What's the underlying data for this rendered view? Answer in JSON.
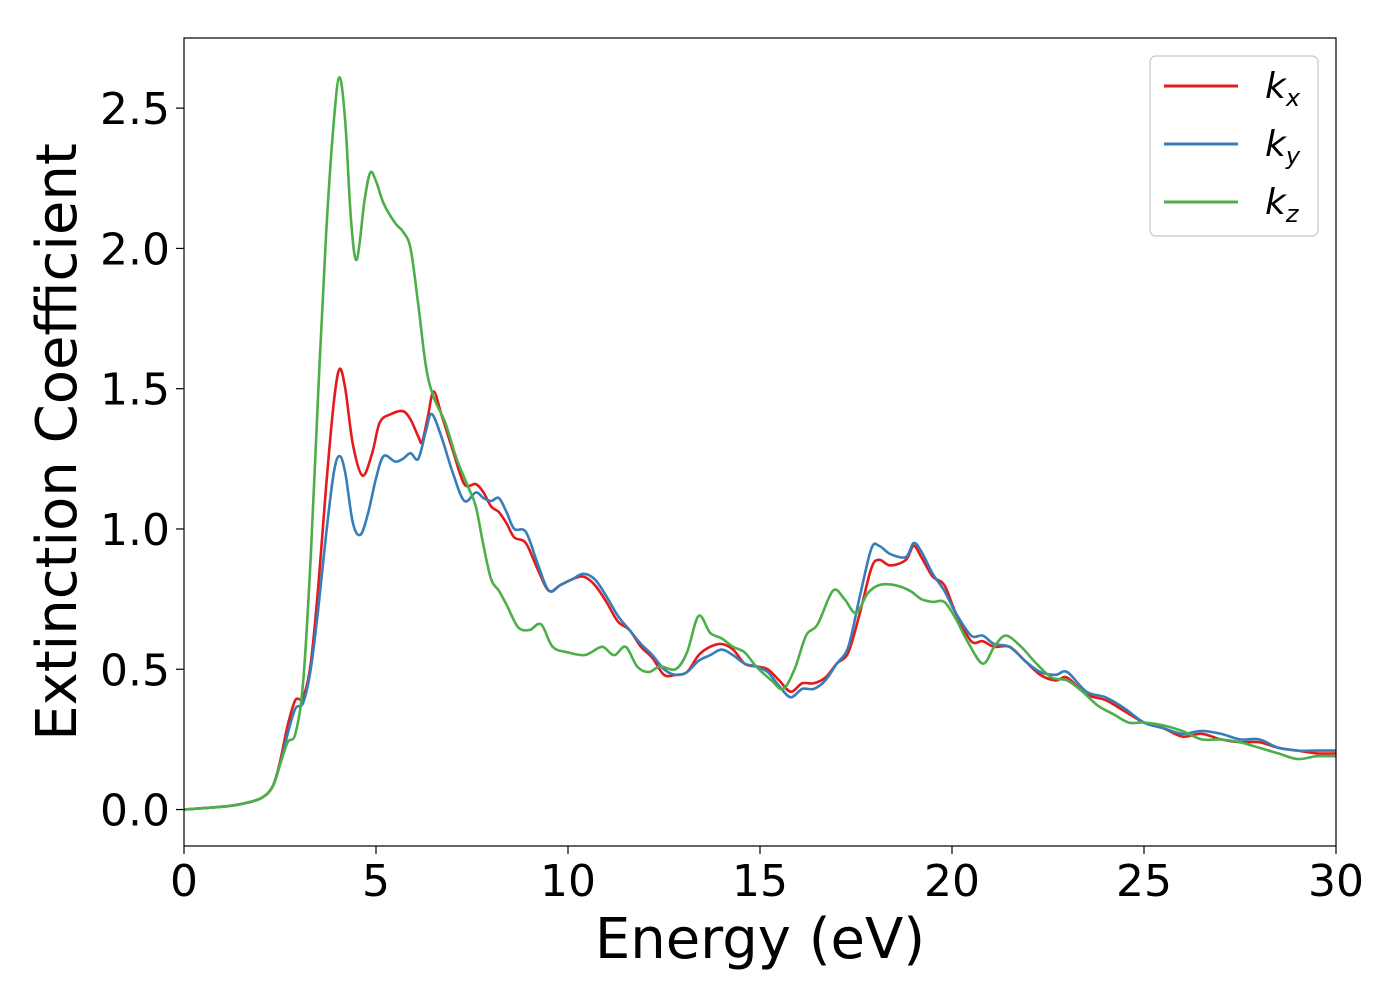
{
  "chart_data": {
    "type": "line",
    "xlabel": "Energy (eV)",
    "ylabel": "Extinction Coefficient",
    "xlim": [
      0,
      30
    ],
    "ylim": [
      -0.13,
      2.75
    ],
    "xticks": [
      0,
      5,
      10,
      15,
      20,
      25,
      30
    ],
    "xtick_labels": [
      "0",
      "5",
      "10",
      "15",
      "20",
      "25",
      "30"
    ],
    "yticks": [
      0.0,
      0.5,
      1.0,
      1.5,
      2.0,
      2.5
    ],
    "ytick_labels": [
      "0.0",
      "0.5",
      "1.0",
      "1.5",
      "2.0",
      "2.5"
    ],
    "grid": false,
    "legend_position": "top-right",
    "series": [
      {
        "name": "k",
        "sub": "x",
        "color": "#e41a1c",
        "points": [
          [
            0,
            0
          ],
          [
            1,
            0.01
          ],
          [
            1.5,
            0.02
          ],
          [
            2,
            0.04
          ],
          [
            2.3,
            0.08
          ],
          [
            2.5,
            0.17
          ],
          [
            2.7,
            0.3
          ],
          [
            2.9,
            0.39
          ],
          [
            3.1,
            0.4
          ],
          [
            3.3,
            0.52
          ],
          [
            3.5,
            0.8
          ],
          [
            3.7,
            1.15
          ],
          [
            3.9,
            1.45
          ],
          [
            4.05,
            1.57
          ],
          [
            4.2,
            1.5
          ],
          [
            4.4,
            1.3
          ],
          [
            4.65,
            1.19
          ],
          [
            4.9,
            1.27
          ],
          [
            5.1,
            1.38
          ],
          [
            5.4,
            1.41
          ],
          [
            5.7,
            1.42
          ],
          [
            5.9,
            1.39
          ],
          [
            6.1,
            1.33
          ],
          [
            6.2,
            1.31
          ],
          [
            6.35,
            1.4
          ],
          [
            6.5,
            1.49
          ],
          [
            6.7,
            1.41
          ],
          [
            7.0,
            1.28
          ],
          [
            7.3,
            1.16
          ],
          [
            7.6,
            1.16
          ],
          [
            7.8,
            1.13
          ],
          [
            8.0,
            1.08
          ],
          [
            8.2,
            1.06
          ],
          [
            8.4,
            1.02
          ],
          [
            8.6,
            0.97
          ],
          [
            8.9,
            0.95
          ],
          [
            9.2,
            0.86
          ],
          [
            9.5,
            0.78
          ],
          [
            9.8,
            0.8
          ],
          [
            10.1,
            0.82
          ],
          [
            10.4,
            0.83
          ],
          [
            10.7,
            0.8
          ],
          [
            11.0,
            0.74
          ],
          [
            11.3,
            0.67
          ],
          [
            11.6,
            0.64
          ],
          [
            11.9,
            0.58
          ],
          [
            12.2,
            0.54
          ],
          [
            12.5,
            0.48
          ],
          [
            12.8,
            0.48
          ],
          [
            13.1,
            0.49
          ],
          [
            13.4,
            0.55
          ],
          [
            13.7,
            0.58
          ],
          [
            14.0,
            0.59
          ],
          [
            14.3,
            0.57
          ],
          [
            14.6,
            0.52
          ],
          [
            14.9,
            0.51
          ],
          [
            15.2,
            0.5
          ],
          [
            15.5,
            0.46
          ],
          [
            15.8,
            0.42
          ],
          [
            16.1,
            0.45
          ],
          [
            16.4,
            0.45
          ],
          [
            16.7,
            0.47
          ],
          [
            17.0,
            0.52
          ],
          [
            17.3,
            0.56
          ],
          [
            17.6,
            0.7
          ],
          [
            17.9,
            0.86
          ],
          [
            18.1,
            0.89
          ],
          [
            18.4,
            0.87
          ],
          [
            18.8,
            0.89
          ],
          [
            19.0,
            0.94
          ],
          [
            19.2,
            0.9
          ],
          [
            19.5,
            0.83
          ],
          [
            19.8,
            0.8
          ],
          [
            20.1,
            0.7
          ],
          [
            20.5,
            0.6
          ],
          [
            20.8,
            0.6
          ],
          [
            21.1,
            0.58
          ],
          [
            21.5,
            0.58
          ],
          [
            21.9,
            0.53
          ],
          [
            22.3,
            0.48
          ],
          [
            22.7,
            0.46
          ],
          [
            23.0,
            0.47
          ],
          [
            23.5,
            0.41
          ],
          [
            24.0,
            0.39
          ],
          [
            24.5,
            0.35
          ],
          [
            25.0,
            0.31
          ],
          [
            25.5,
            0.29
          ],
          [
            26.0,
            0.26
          ],
          [
            26.5,
            0.27
          ],
          [
            27.0,
            0.25
          ],
          [
            27.5,
            0.24
          ],
          [
            28.0,
            0.24
          ],
          [
            28.5,
            0.22
          ],
          [
            29.0,
            0.21
          ],
          [
            29.5,
            0.2
          ],
          [
            30,
            0.2
          ]
        ]
      },
      {
        "name": "k",
        "sub": "y",
        "color": "#377eb8",
        "points": [
          [
            0,
            0
          ],
          [
            1,
            0.01
          ],
          [
            1.5,
            0.02
          ],
          [
            2,
            0.04
          ],
          [
            2.3,
            0.08
          ],
          [
            2.5,
            0.16
          ],
          [
            2.7,
            0.27
          ],
          [
            2.9,
            0.36
          ],
          [
            3.1,
            0.38
          ],
          [
            3.3,
            0.5
          ],
          [
            3.5,
            0.72
          ],
          [
            3.7,
            0.98
          ],
          [
            3.9,
            1.2
          ],
          [
            4.05,
            1.26
          ],
          [
            4.2,
            1.2
          ],
          [
            4.4,
            1.02
          ],
          [
            4.6,
            0.98
          ],
          [
            4.8,
            1.06
          ],
          [
            5.0,
            1.18
          ],
          [
            5.2,
            1.26
          ],
          [
            5.5,
            1.24
          ],
          [
            5.7,
            1.25
          ],
          [
            5.9,
            1.27
          ],
          [
            6.1,
            1.25
          ],
          [
            6.3,
            1.35
          ],
          [
            6.45,
            1.41
          ],
          [
            6.7,
            1.33
          ],
          [
            7.0,
            1.2
          ],
          [
            7.3,
            1.1
          ],
          [
            7.6,
            1.13
          ],
          [
            7.8,
            1.11
          ],
          [
            8.0,
            1.1
          ],
          [
            8.2,
            1.11
          ],
          [
            8.4,
            1.06
          ],
          [
            8.6,
            1.0
          ],
          [
            8.9,
            0.99
          ],
          [
            9.2,
            0.88
          ],
          [
            9.5,
            0.78
          ],
          [
            9.8,
            0.8
          ],
          [
            10.1,
            0.82
          ],
          [
            10.4,
            0.84
          ],
          [
            10.7,
            0.82
          ],
          [
            11.0,
            0.76
          ],
          [
            11.3,
            0.69
          ],
          [
            11.6,
            0.64
          ],
          [
            11.9,
            0.59
          ],
          [
            12.2,
            0.55
          ],
          [
            12.5,
            0.5
          ],
          [
            12.8,
            0.48
          ],
          [
            13.1,
            0.49
          ],
          [
            13.4,
            0.53
          ],
          [
            13.7,
            0.55
          ],
          [
            14.0,
            0.57
          ],
          [
            14.3,
            0.55
          ],
          [
            14.6,
            0.52
          ],
          [
            14.9,
            0.51
          ],
          [
            15.2,
            0.49
          ],
          [
            15.5,
            0.44
          ],
          [
            15.8,
            0.4
          ],
          [
            16.1,
            0.43
          ],
          [
            16.4,
            0.43
          ],
          [
            16.7,
            0.46
          ],
          [
            17.0,
            0.52
          ],
          [
            17.3,
            0.58
          ],
          [
            17.6,
            0.76
          ],
          [
            17.9,
            0.93
          ],
          [
            18.1,
            0.94
          ],
          [
            18.4,
            0.91
          ],
          [
            18.8,
            0.9
          ],
          [
            19.0,
            0.95
          ],
          [
            19.2,
            0.92
          ],
          [
            19.5,
            0.84
          ],
          [
            19.8,
            0.78
          ],
          [
            20.1,
            0.7
          ],
          [
            20.5,
            0.62
          ],
          [
            20.8,
            0.62
          ],
          [
            21.1,
            0.59
          ],
          [
            21.5,
            0.58
          ],
          [
            21.9,
            0.53
          ],
          [
            22.3,
            0.49
          ],
          [
            22.7,
            0.48
          ],
          [
            23.0,
            0.49
          ],
          [
            23.5,
            0.42
          ],
          [
            24.0,
            0.4
          ],
          [
            24.5,
            0.36
          ],
          [
            25.0,
            0.31
          ],
          [
            25.5,
            0.29
          ],
          [
            26.0,
            0.27
          ],
          [
            26.5,
            0.28
          ],
          [
            27.0,
            0.27
          ],
          [
            27.5,
            0.25
          ],
          [
            28.0,
            0.25
          ],
          [
            28.5,
            0.22
          ],
          [
            29.0,
            0.21
          ],
          [
            29.5,
            0.21
          ],
          [
            30,
            0.21
          ]
        ]
      },
      {
        "name": "k",
        "sub": "z",
        "color": "#4daf4a",
        "points": [
          [
            0,
            0
          ],
          [
            1,
            0.01
          ],
          [
            1.5,
            0.02
          ],
          [
            2,
            0.04
          ],
          [
            2.3,
            0.08
          ],
          [
            2.5,
            0.16
          ],
          [
            2.7,
            0.24
          ],
          [
            2.9,
            0.27
          ],
          [
            3.1,
            0.45
          ],
          [
            3.3,
            0.9
          ],
          [
            3.5,
            1.5
          ],
          [
            3.7,
            2.05
          ],
          [
            3.9,
            2.45
          ],
          [
            4.05,
            2.61
          ],
          [
            4.2,
            2.45
          ],
          [
            4.35,
            2.1
          ],
          [
            4.5,
            1.96
          ],
          [
            4.7,
            2.17
          ],
          [
            4.85,
            2.27
          ],
          [
            5.0,
            2.24
          ],
          [
            5.2,
            2.16
          ],
          [
            5.5,
            2.09
          ],
          [
            5.7,
            2.06
          ],
          [
            5.9,
            2.0
          ],
          [
            6.1,
            1.8
          ],
          [
            6.3,
            1.58
          ],
          [
            6.5,
            1.47
          ],
          [
            6.8,
            1.38
          ],
          [
            7.1,
            1.25
          ],
          [
            7.4,
            1.15
          ],
          [
            7.6,
            1.08
          ],
          [
            7.8,
            0.94
          ],
          [
            8.0,
            0.82
          ],
          [
            8.2,
            0.78
          ],
          [
            8.4,
            0.73
          ],
          [
            8.7,
            0.65
          ],
          [
            9.0,
            0.64
          ],
          [
            9.3,
            0.66
          ],
          [
            9.6,
            0.58
          ],
          [
            10.0,
            0.56
          ],
          [
            10.4,
            0.55
          ],
          [
            10.6,
            0.56
          ],
          [
            10.9,
            0.58
          ],
          [
            11.2,
            0.55
          ],
          [
            11.5,
            0.58
          ],
          [
            11.8,
            0.51
          ],
          [
            12.1,
            0.49
          ],
          [
            12.4,
            0.51
          ],
          [
            12.8,
            0.5
          ],
          [
            13.1,
            0.56
          ],
          [
            13.4,
            0.69
          ],
          [
            13.7,
            0.63
          ],
          [
            14.0,
            0.61
          ],
          [
            14.3,
            0.58
          ],
          [
            14.6,
            0.56
          ],
          [
            14.9,
            0.51
          ],
          [
            15.3,
            0.46
          ],
          [
            15.6,
            0.43
          ],
          [
            15.9,
            0.5
          ],
          [
            16.2,
            0.62
          ],
          [
            16.5,
            0.66
          ],
          [
            16.9,
            0.78
          ],
          [
            17.2,
            0.75
          ],
          [
            17.5,
            0.7
          ],
          [
            17.8,
            0.77
          ],
          [
            18.1,
            0.8
          ],
          [
            18.5,
            0.8
          ],
          [
            18.9,
            0.78
          ],
          [
            19.2,
            0.75
          ],
          [
            19.5,
            0.74
          ],
          [
            19.8,
            0.74
          ],
          [
            20.1,
            0.68
          ],
          [
            20.4,
            0.6
          ],
          [
            20.8,
            0.52
          ],
          [
            21.1,
            0.58
          ],
          [
            21.4,
            0.62
          ],
          [
            21.8,
            0.58
          ],
          [
            22.2,
            0.52
          ],
          [
            22.6,
            0.47
          ],
          [
            23.0,
            0.46
          ],
          [
            23.4,
            0.42
          ],
          [
            23.8,
            0.37
          ],
          [
            24.2,
            0.34
          ],
          [
            24.6,
            0.31
          ],
          [
            25.0,
            0.31
          ],
          [
            25.5,
            0.3
          ],
          [
            26.0,
            0.28
          ],
          [
            26.5,
            0.25
          ],
          [
            27.0,
            0.25
          ],
          [
            27.5,
            0.24
          ],
          [
            28.0,
            0.22
          ],
          [
            28.5,
            0.2
          ],
          [
            29.0,
            0.18
          ],
          [
            29.5,
            0.19
          ],
          [
            30,
            0.19
          ]
        ]
      }
    ]
  }
}
